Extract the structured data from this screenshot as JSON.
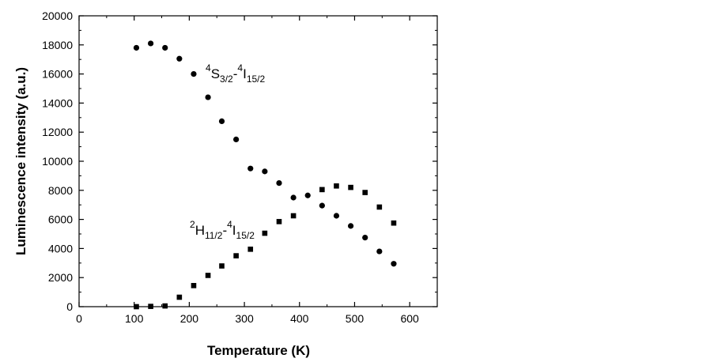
{
  "chart_data": {
    "type": "scatter",
    "xlabel": "Temperature (K)",
    "ylabel": "Luminescence intensity (a.u.)",
    "xlim": [
      0,
      650
    ],
    "ylim": [
      0,
      20000
    ],
    "x_ticks": [
      "0",
      "100",
      "200",
      "300",
      "400",
      "500",
      "600"
    ],
    "y_ticks": [
      "0",
      "2000",
      "4000",
      "6000",
      "8000",
      "10000",
      "12000",
      "14000",
      "16000",
      "18000",
      "20000"
    ],
    "grid": false,
    "annotations": [
      {
        "sup1": "4",
        "base1": "S",
        "sub1": "3/2",
        "dash": "-",
        "sup2": "4",
        "base2": "I",
        "sub2": "15/2"
      },
      {
        "sup1": "2",
        "base1": "H",
        "sub1": "11/2",
        "dash": "-",
        "sup2": "4",
        "base2": "I",
        "sub2": "15/2"
      }
    ],
    "series": [
      {
        "marker": "circle",
        "points": [
          [
            104,
            17800
          ],
          [
            130,
            18100
          ],
          [
            156,
            17800
          ],
          [
            182,
            17050
          ],
          [
            208,
            16000
          ],
          [
            234,
            14400
          ],
          [
            259,
            12750
          ],
          [
            285,
            11500
          ],
          [
            311,
            9500
          ],
          [
            337,
            9300
          ],
          [
            363,
            8500
          ],
          [
            389,
            7500
          ],
          [
            415,
            7650
          ],
          [
            441,
            6950
          ],
          [
            467,
            6250
          ],
          [
            493,
            5550
          ],
          [
            519,
            4750
          ],
          [
            545,
            3800
          ],
          [
            571,
            2950
          ]
        ]
      },
      {
        "marker": "square",
        "points": [
          [
            104,
            0
          ],
          [
            130,
            20
          ],
          [
            156,
            50
          ],
          [
            182,
            650
          ],
          [
            208,
            1450
          ],
          [
            234,
            2150
          ],
          [
            259,
            2800
          ],
          [
            285,
            3500
          ],
          [
            311,
            3950
          ],
          [
            337,
            5050
          ],
          [
            363,
            5850
          ],
          [
            389,
            6250
          ],
          [
            441,
            8050
          ],
          [
            467,
            8300
          ],
          [
            493,
            8200
          ],
          [
            519,
            7850
          ],
          [
            545,
            6850
          ],
          [
            571,
            5750
          ]
        ]
      }
    ]
  }
}
